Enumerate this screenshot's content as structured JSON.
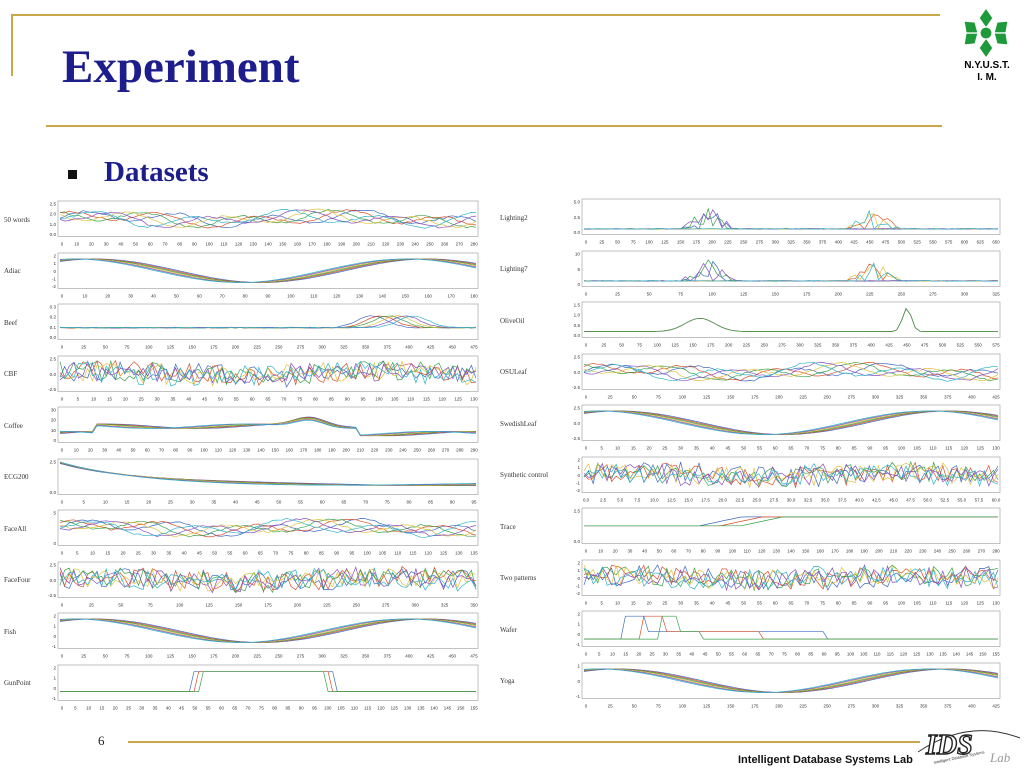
{
  "slide": {
    "title": "Experiment",
    "bullet": "Datasets",
    "page_number": "6",
    "footer": "Intelligent Database Systems Lab",
    "school_line1": "N.Y.U.S.T.",
    "school_line2": "I. M.",
    "accent_color": "#c8a84a",
    "title_color": "#1d1e8c"
  },
  "lab_logo": {
    "letters": "IDS",
    "suffix": "Lab",
    "arc_text": "Intelligent Database Systems"
  },
  "datasets_left": [
    {
      "name": "50 words",
      "yticks": [
        "2.5",
        "2.0",
        "1.0",
        "0.0"
      ],
      "xticks": [
        "0",
        "10",
        "20",
        "30",
        "40",
        "50",
        "60",
        "70",
        "80",
        "90",
        "100",
        "110",
        "120",
        "130",
        "140",
        "150",
        "160",
        "170",
        "180",
        "190",
        "200",
        "210",
        "220",
        "230",
        "240",
        "250",
        "260",
        "270",
        "280"
      ],
      "pattern": "waves"
    },
    {
      "name": "Adiac",
      "yticks": [
        "2",
        "1",
        "0",
        "-1",
        "-2"
      ],
      "xticks": [
        "0",
        "10",
        "20",
        "30",
        "40",
        "50",
        "60",
        "70",
        "80",
        "90",
        "100",
        "110",
        "120",
        "130",
        "140",
        "150",
        "160",
        "170",
        "180"
      ],
      "pattern": "sine"
    },
    {
      "name": "Beef",
      "yticks": [
        "0.3",
        "0.2",
        "0.1",
        "0.0"
      ],
      "xticks": [
        "0",
        "25",
        "50",
        "75",
        "100",
        "125",
        "150",
        "175",
        "200",
        "225",
        "250",
        "275",
        "300",
        "325",
        "350",
        "375",
        "400",
        "425",
        "450",
        "475"
      ],
      "pattern": "flatbump"
    },
    {
      "name": "CBF",
      "yticks": [
        "2.5",
        "0.0",
        "-2.5"
      ],
      "xticks": [
        "0",
        "5",
        "10",
        "15",
        "20",
        "25",
        "30",
        "35",
        "40",
        "45",
        "50",
        "55",
        "60",
        "65",
        "70",
        "75",
        "80",
        "85",
        "90",
        "95",
        "100",
        "105",
        "110",
        "115",
        "120",
        "125",
        "130"
      ],
      "pattern": "noise"
    },
    {
      "name": "Coffee",
      "yticks": [
        "30",
        "20",
        "10",
        "0"
      ],
      "xticks": [
        "0",
        "10",
        "20",
        "30",
        "40",
        "50",
        "60",
        "70",
        "80",
        "90",
        "100",
        "110",
        "120",
        "130",
        "140",
        "150",
        "160",
        "170",
        "180",
        "190",
        "200",
        "210",
        "220",
        "230",
        "240",
        "250",
        "260",
        "270",
        "280",
        "290"
      ],
      "pattern": "hump"
    },
    {
      "name": "ECG200",
      "yticks": [
        "2.5",
        "0.0"
      ],
      "xticks": [
        "0",
        "5",
        "10",
        "15",
        "20",
        "25",
        "30",
        "35",
        "40",
        "45",
        "50",
        "55",
        "60",
        "65",
        "70",
        "75",
        "80",
        "85",
        "90",
        "95"
      ],
      "pattern": "decay"
    },
    {
      "name": "FaceAll",
      "yticks": [
        "5",
        "0"
      ],
      "xticks": [
        "0",
        "5",
        "10",
        "15",
        "20",
        "25",
        "30",
        "35",
        "40",
        "45",
        "50",
        "55",
        "60",
        "65",
        "70",
        "75",
        "80",
        "85",
        "90",
        "95",
        "100",
        "105",
        "110",
        "115",
        "120",
        "125",
        "130",
        "135"
      ],
      "pattern": "waves"
    },
    {
      "name": "FaceFour",
      "yticks": [
        "2.5",
        "0.0",
        "-2.5"
      ],
      "xticks": [
        "0",
        "25",
        "50",
        "75",
        "100",
        "125",
        "150",
        "175",
        "200",
        "225",
        "250",
        "275",
        "300",
        "325",
        "350"
      ],
      "pattern": "noise"
    },
    {
      "name": "Fish",
      "yticks": [
        "2",
        "1",
        "0",
        "-1"
      ],
      "xticks": [
        "0",
        "25",
        "50",
        "75",
        "100",
        "125",
        "150",
        "175",
        "200",
        "225",
        "250",
        "275",
        "300",
        "325",
        "350",
        "375",
        "400",
        "425",
        "450",
        "475"
      ],
      "pattern": "sine"
    },
    {
      "name": "GunPoint",
      "yticks": [
        "2",
        "1",
        "0",
        "-1"
      ],
      "xticks": [
        "0",
        "5",
        "10",
        "15",
        "20",
        "25",
        "30",
        "35",
        "40",
        "45",
        "50",
        "55",
        "60",
        "65",
        "70",
        "75",
        "80",
        "85",
        "90",
        "95",
        "100",
        "105",
        "110",
        "115",
        "120",
        "125",
        "130",
        "135",
        "140",
        "145",
        "150",
        "155"
      ],
      "pattern": "plateau"
    }
  ],
  "datasets_right": [
    {
      "name": "Lighting2",
      "yticks": [
        "5.0",
        "2.5",
        "0.0"
      ],
      "xticks": [
        "0",
        "25",
        "50",
        "75",
        "100",
        "125",
        "150",
        "175",
        "200",
        "225",
        "250",
        "275",
        "300",
        "325",
        "350",
        "375",
        "400",
        "425",
        "450",
        "475",
        "500",
        "525",
        "550",
        "575",
        "600",
        "625",
        "650"
      ],
      "pattern": "spikes"
    },
    {
      "name": "Lighting7",
      "yticks": [
        "10",
        "5",
        "0"
      ],
      "xticks": [
        "0",
        "25",
        "50",
        "75",
        "100",
        "125",
        "150",
        "175",
        "200",
        "225",
        "250",
        "275",
        "300",
        "325"
      ],
      "pattern": "spikes"
    },
    {
      "name": "OliveOil",
      "yticks": [
        "1.5",
        "1.0",
        "0.5",
        "0.0"
      ],
      "xticks": [
        "0",
        "25",
        "50",
        "75",
        "100",
        "125",
        "150",
        "175",
        "200",
        "225",
        "250",
        "275",
        "300",
        "325",
        "350",
        "375",
        "400",
        "425",
        "450",
        "475",
        "500",
        "525",
        "550",
        "575"
      ],
      "pattern": "peaks"
    },
    {
      "name": "OSULeaf",
      "yticks": [
        "2.5",
        "0.0",
        "-2.5"
      ],
      "xticks": [
        "0",
        "25",
        "50",
        "75",
        "100",
        "125",
        "150",
        "175",
        "200",
        "225",
        "250",
        "275",
        "300",
        "325",
        "350",
        "375",
        "400",
        "425"
      ],
      "pattern": "waves"
    },
    {
      "name": "SwedishLeaf",
      "yticks": [
        "2.5",
        "0.0",
        "-2.5"
      ],
      "xticks": [
        "0",
        "5",
        "10",
        "15",
        "20",
        "25",
        "30",
        "35",
        "40",
        "45",
        "50",
        "55",
        "60",
        "65",
        "70",
        "75",
        "80",
        "85",
        "90",
        "95",
        "100",
        "105",
        "110",
        "115",
        "120",
        "125",
        "130"
      ],
      "pattern": "sine"
    },
    {
      "name": "Synthetic control",
      "yticks": [
        "2",
        "1",
        "0",
        "-1",
        "-2"
      ],
      "xticks": [
        "0.0",
        "2.5",
        "5.0",
        "7.5",
        "10.0",
        "12.5",
        "15.0",
        "17.5",
        "20.0",
        "22.5",
        "25.0",
        "27.5",
        "30.0",
        "32.5",
        "35.0",
        "37.5",
        "40.0",
        "42.5",
        "45.0",
        "47.5",
        "50.0",
        "52.5",
        "55.0",
        "57.5",
        "60.0"
      ],
      "pattern": "noise"
    },
    {
      "name": "Trace",
      "yticks": [
        "2.5",
        "0.0"
      ],
      "xticks": [
        "0",
        "10",
        "20",
        "30",
        "40",
        "50",
        "60",
        "70",
        "80",
        "90",
        "100",
        "110",
        "120",
        "130",
        "140",
        "150",
        "160",
        "170",
        "180",
        "190",
        "200",
        "210",
        "220",
        "230",
        "240",
        "250",
        "260",
        "270",
        "280"
      ],
      "pattern": "step"
    },
    {
      "name": "Two patterns",
      "yticks": [
        "2",
        "1",
        "0",
        "-1",
        "-2"
      ],
      "xticks": [
        "0",
        "5",
        "10",
        "15",
        "20",
        "25",
        "30",
        "35",
        "40",
        "45",
        "50",
        "55",
        "60",
        "65",
        "70",
        "75",
        "80",
        "85",
        "90",
        "95",
        "100",
        "105",
        "110",
        "115",
        "120",
        "125",
        "130"
      ],
      "pattern": "noise"
    },
    {
      "name": "Wafer",
      "yticks": [
        "2",
        "1",
        "0",
        "-1"
      ],
      "xticks": [
        "0",
        "5",
        "10",
        "15",
        "20",
        "25",
        "30",
        "35",
        "40",
        "45",
        "50",
        "55",
        "60",
        "65",
        "70",
        "75",
        "80",
        "85",
        "90",
        "95",
        "100",
        "105",
        "110",
        "115",
        "120",
        "125",
        "130",
        "135",
        "140",
        "145",
        "150",
        "155"
      ],
      "pattern": "wafer"
    },
    {
      "name": "Yoga",
      "yticks": [
        "1",
        "0",
        "-1"
      ],
      "xticks": [
        "0",
        "25",
        "50",
        "75",
        "100",
        "125",
        "150",
        "175",
        "200",
        "225",
        "250",
        "275",
        "300",
        "325",
        "350",
        "375",
        "400",
        "425"
      ],
      "pattern": "sine"
    }
  ]
}
